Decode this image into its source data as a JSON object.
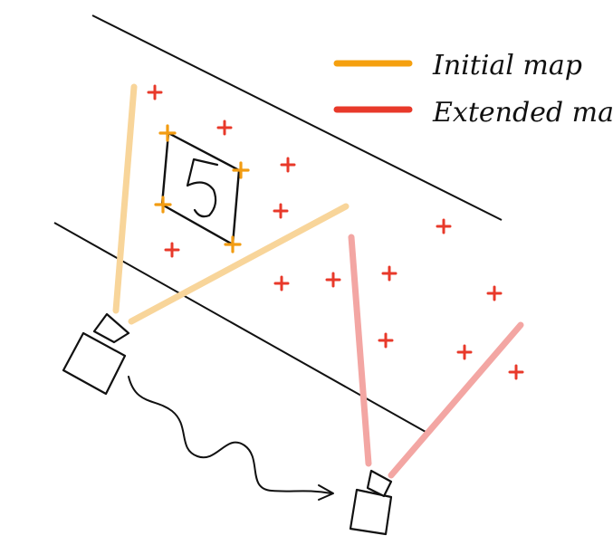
{
  "legend": {
    "items": [
      {
        "label": "Initial map",
        "color": "#F5A00F"
      },
      {
        "label": "Extended map",
        "color": "#E8392A"
      }
    ]
  },
  "marker_glyph": "+",
  "colors": {
    "initial_marker": "#F29C12",
    "initial_ray": "#F8D59A",
    "feature_marker": "#E8392A",
    "extended_ray": "#F3A6A3",
    "ink": "#111111"
  },
  "icons": [
    "camera-icon",
    "camera-icon",
    "motion-arrow-icon",
    "marker-icon"
  ]
}
